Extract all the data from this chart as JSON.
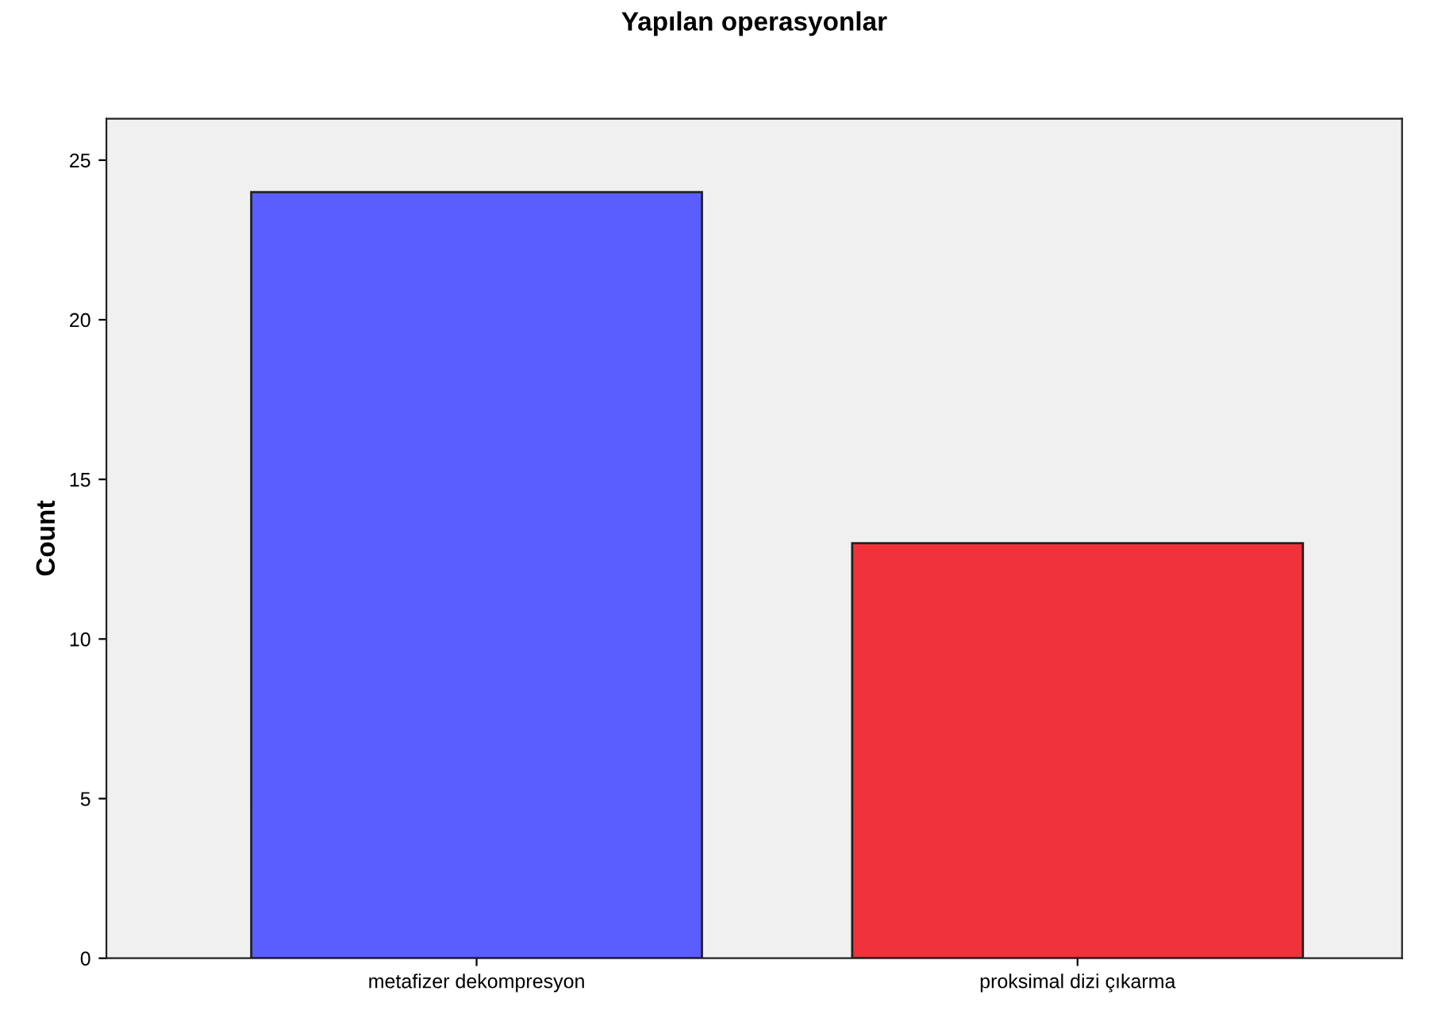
{
  "chart_data": {
    "type": "bar",
    "title": "Yapılan operasyonlar",
    "ylabel": "Count",
    "categories": [
      "metafizer dekompresyon",
      "proksimal dizi çıkarma"
    ],
    "values": [
      24,
      13
    ],
    "colors": [
      "#5a5eff",
      "#f0323a"
    ],
    "ylim": [
      0,
      26.3
    ],
    "yticks": [
      0,
      5,
      10,
      15,
      20,
      25
    ],
    "grid": false,
    "legend": false
  }
}
